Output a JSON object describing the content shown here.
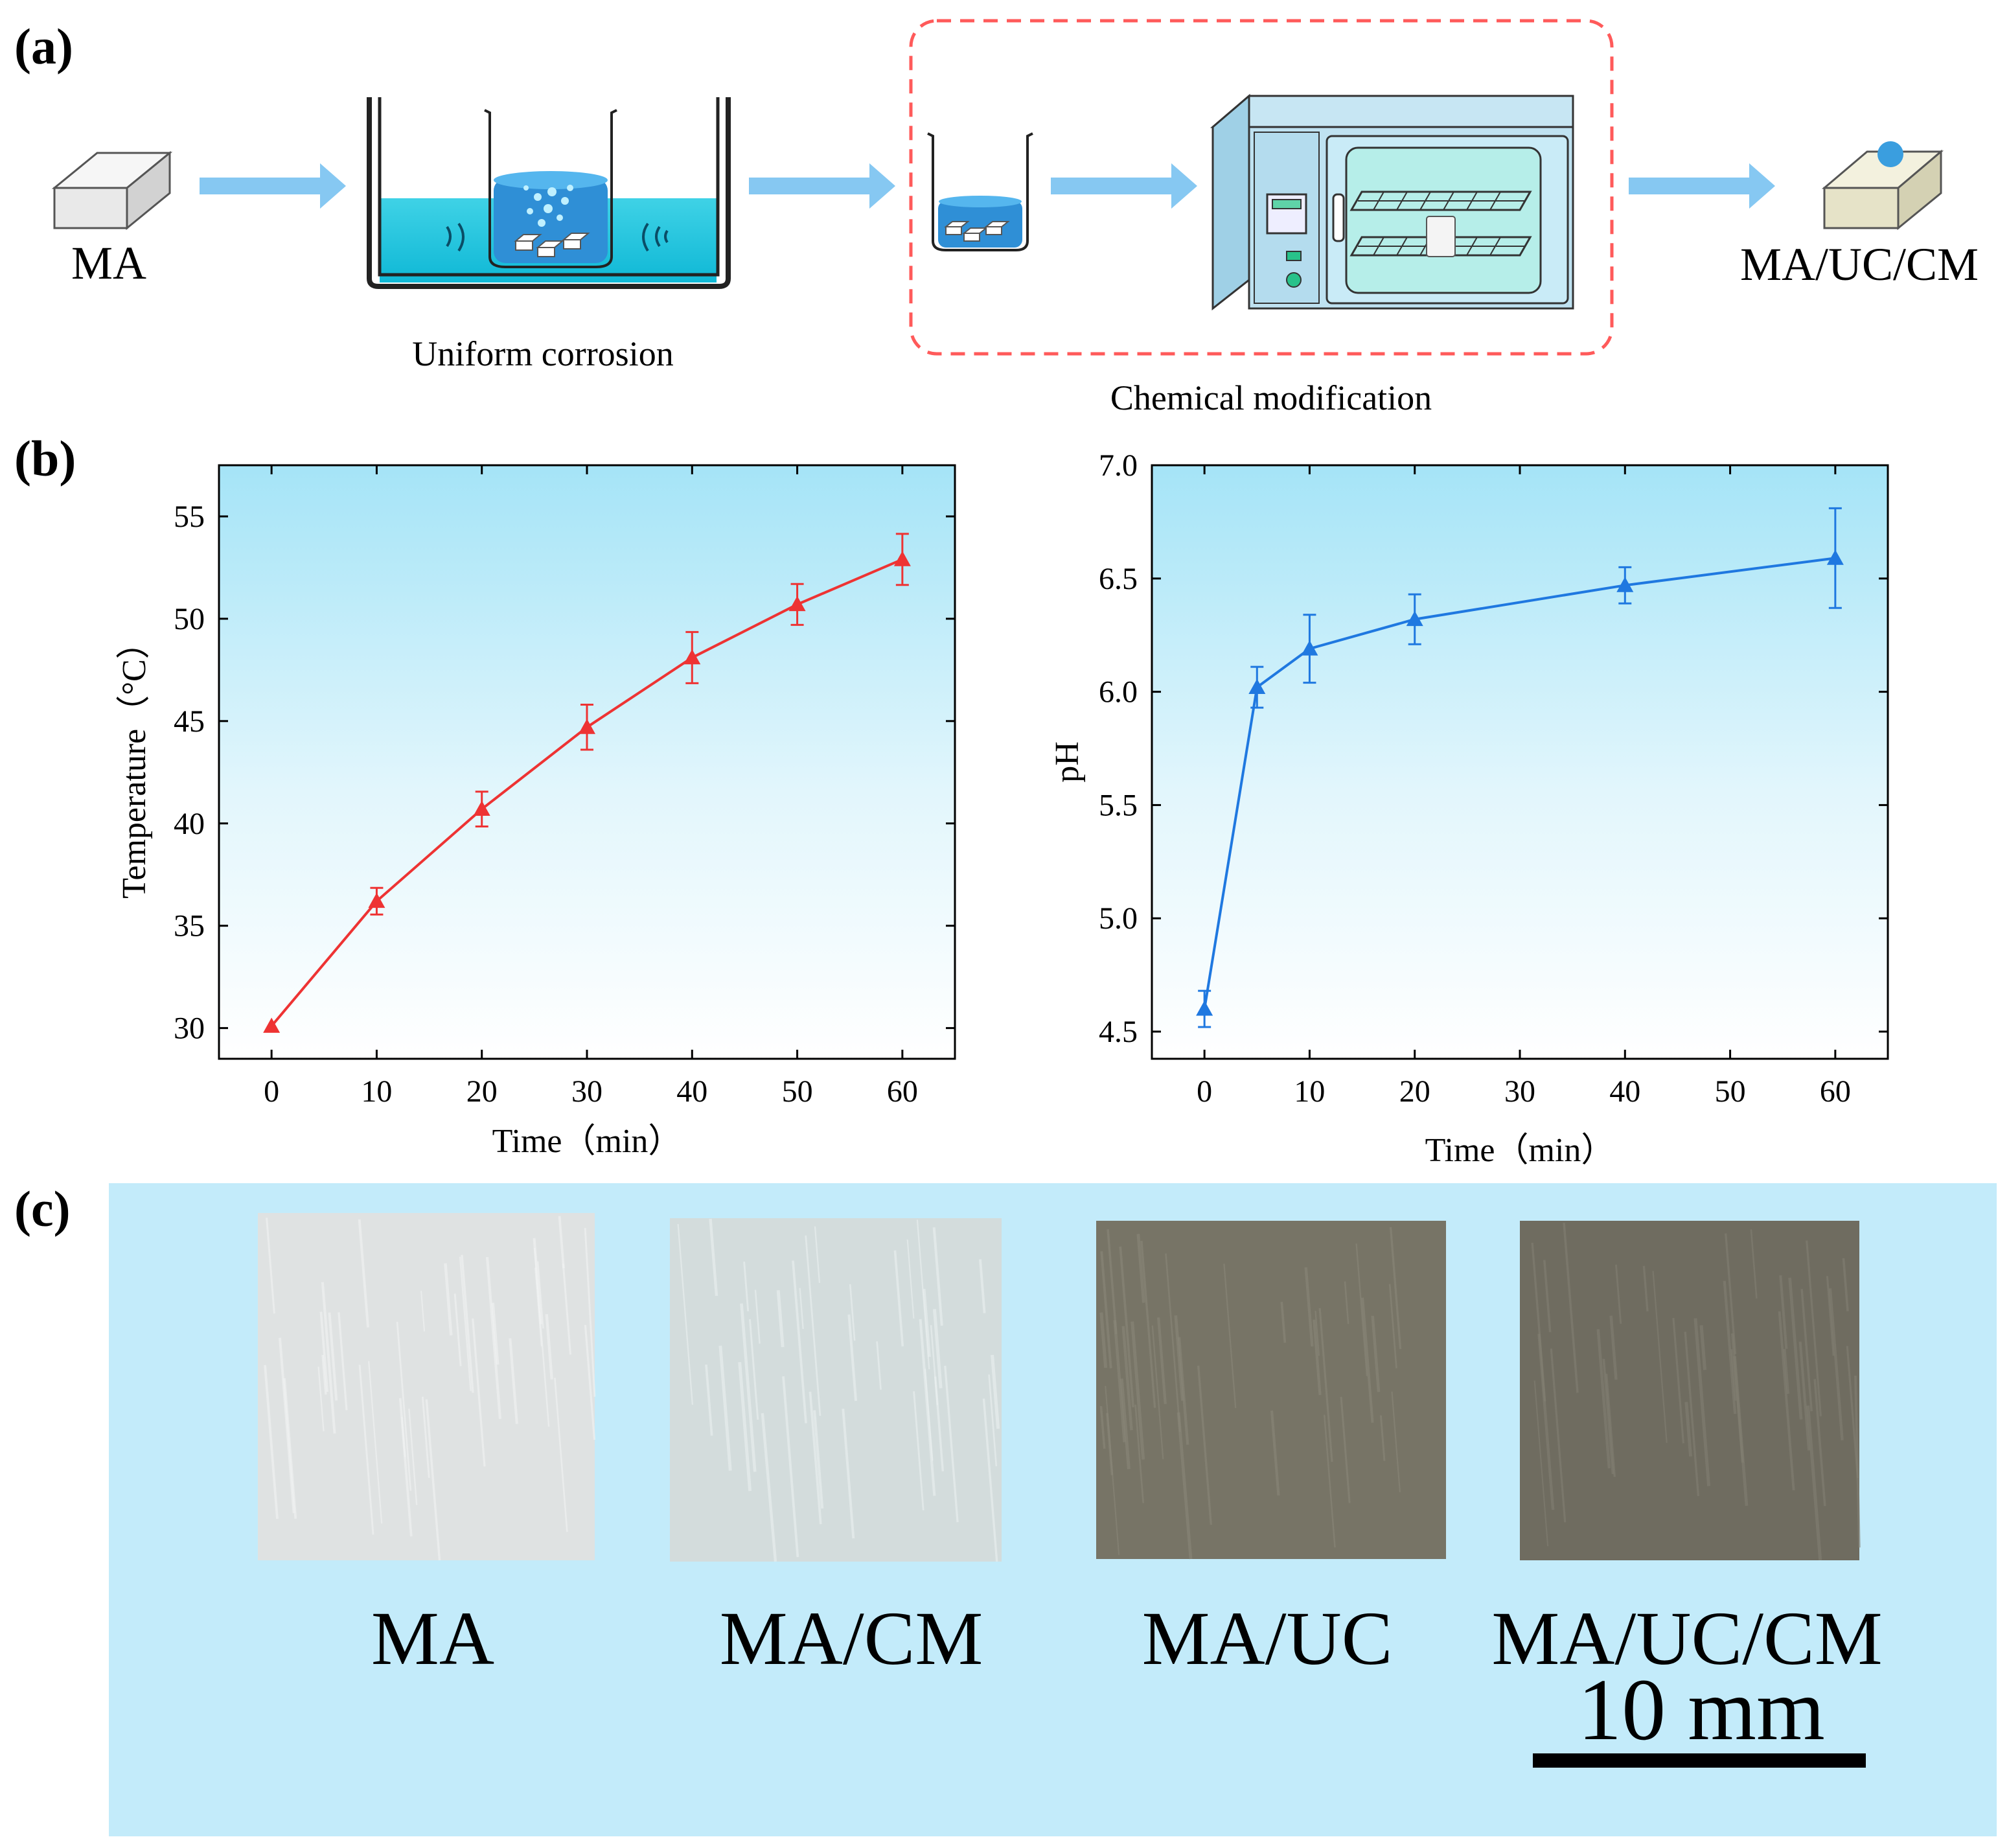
{
  "panel_labels": {
    "a": "(a)",
    "b": "(b)",
    "c": "(c)"
  },
  "process": {
    "start_label": "MA",
    "end_label": "MA/UC/CM",
    "step1_caption": "Uniform corrosion",
    "step2_caption": "Chemical modification"
  },
  "colors": {
    "arrow": "#86c8f2",
    "water": "#16c6df",
    "beaker_liquid": "#2f8fd6",
    "dashed_box": "#ff5a5a",
    "plot_top": "#a5e4f7",
    "temp_series": "#ee3333",
    "ph_series": "#1f78e0",
    "photo_bg": "#c3ebfa",
    "droplet": "#3a9edf"
  },
  "chart_data": [
    {
      "type": "line",
      "xlabel": "Time（min）",
      "ylabel": "Temperature（°C）",
      "xlim": [
        -5,
        65
      ],
      "ylim": [
        28.5,
        57.5
      ],
      "xticks": [
        0,
        10,
        20,
        30,
        40,
        50,
        60
      ],
      "yticks": [
        30,
        35,
        40,
        45,
        50,
        55
      ],
      "marker": "triangle",
      "series": [
        {
          "x": [
            0,
            10,
            20,
            30,
            40,
            50,
            60
          ],
          "y": [
            30.1,
            36.2,
            40.7,
            44.7,
            48.1,
            50.7,
            52.9
          ],
          "yerr": [
            0.0,
            0.65,
            0.85,
            1.1,
            1.25,
            1.0,
            1.25
          ]
        }
      ]
    },
    {
      "type": "line",
      "xlabel": "Time（min）",
      "ylabel": "pH",
      "xlim": [
        -5,
        65
      ],
      "ylim": [
        4.38,
        7.0
      ],
      "xticks": [
        0,
        10,
        20,
        30,
        40,
        50,
        60
      ],
      "yticks": [
        4.5,
        5.0,
        5.5,
        6.0,
        6.5,
        7.0
      ],
      "ytick_labels": [
        "4.5",
        "5.0",
        "5.5",
        "6.0",
        "6.5",
        "7.0"
      ],
      "marker": "triangle",
      "series": [
        {
          "x": [
            0,
            5,
            10,
            20,
            40,
            60
          ],
          "y": [
            4.6,
            6.02,
            6.19,
            6.32,
            6.47,
            6.59
          ],
          "yerr": [
            0.08,
            0.09,
            0.15,
            0.11,
            0.08,
            0.22
          ]
        }
      ]
    }
  ],
  "photos": {
    "samples": [
      {
        "label": "MA",
        "surface": "#dfe2e2",
        "streak": "#f3f5f5"
      },
      {
        "label": "MA/CM",
        "surface": "#d3dcdc",
        "streak": "#edf2f2"
      },
      {
        "label": "MA/UC",
        "surface": "#777466",
        "streak": "#8b887a"
      },
      {
        "label": "MA/UC/CM",
        "surface": "#6f6c60",
        "streak": "#848174"
      }
    ],
    "scale_bar_label": "10 mm"
  }
}
